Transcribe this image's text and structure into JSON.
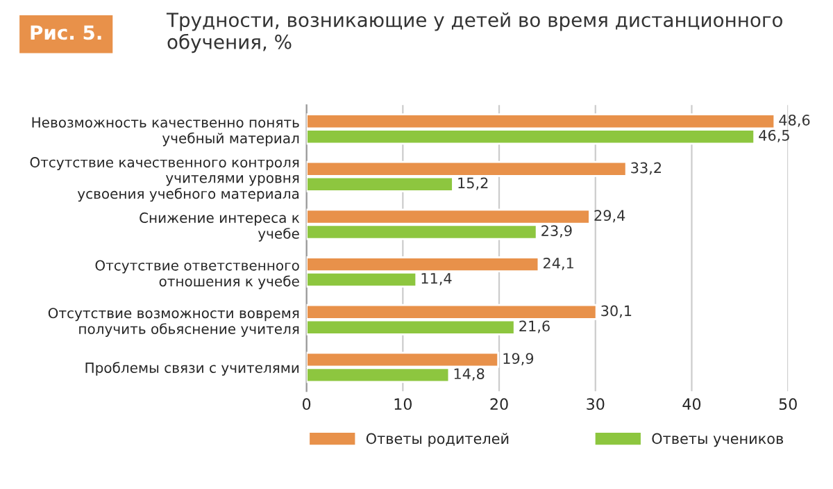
{
  "chart_data": {
    "type": "bar",
    "orientation": "horizontal",
    "title": "Трудности, возникающие у детей во время дистанционного\nобучения, %",
    "annotations": [
      "Рис. 5."
    ],
    "categories": [
      "Невозможность качественно понять\nучебный материал",
      "Отсутствие качественного контроля\nучителями уровня\nусвоения учебного материала",
      "Снижение интереса к\nучебе",
      "Отсутствие ответственного\nотношения к учебе",
      "Отсутствие возможности вовремя\nполучить обьяснение учителя",
      "Проблемы связи с учителями"
    ],
    "series": [
      {
        "name": "Ответы родителей",
        "color": "#e8914a",
        "values": [
          48.6,
          33.2,
          29.4,
          24.1,
          30.1,
          19.9
        ],
        "value_labels": [
          "48,6",
          "33,2",
          "29,4",
          "24,1",
          "30,1",
          "19,9"
        ]
      },
      {
        "name": "Ответы учеников",
        "color": "#8dc63f",
        "values": [
          46.5,
          15.2,
          23.9,
          11.4,
          21.6,
          14.8
        ],
        "value_labels": [
          "46,5",
          "15,2",
          "23,9",
          "11,4",
          "21,6",
          "14,8"
        ]
      }
    ],
    "xlim": [
      0,
      50
    ],
    "xticks": [
      0,
      10,
      20,
      30,
      40,
      50
    ],
    "grid": "x",
    "legend": "bottom"
  }
}
